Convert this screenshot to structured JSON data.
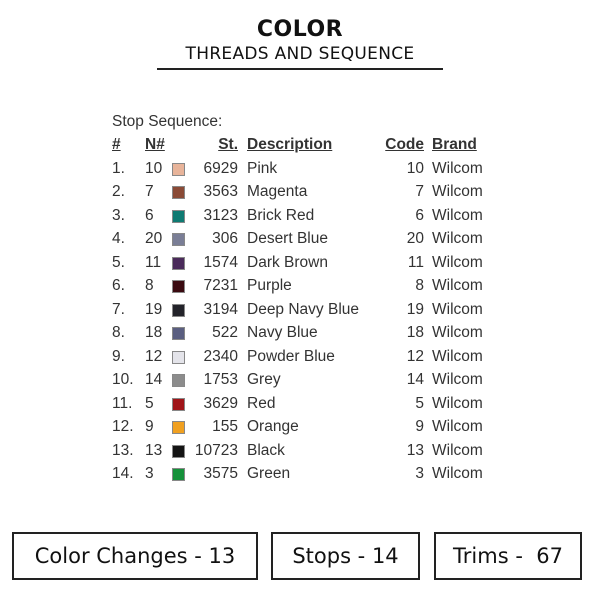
{
  "title": "COLOR",
  "subtitle": "THREADS AND SEQUENCE",
  "stop_sequence_label": "Stop Sequence:",
  "headers": {
    "num": "#",
    "n": "N#",
    "st": "St.",
    "description": "Description",
    "code": "Code",
    "brand": "Brand"
  },
  "rows": [
    {
      "num": "1.",
      "n": "10",
      "color": "#e8b49a",
      "st": "6929",
      "description": "Pink",
      "code": "10",
      "brand": "Wilcom"
    },
    {
      "num": "2.",
      "n": "7",
      "color": "#8a4a36",
      "st": "3563",
      "description": "Magenta",
      "code": "7",
      "brand": "Wilcom"
    },
    {
      "num": "3.",
      "n": "6",
      "color": "#0e7a72",
      "st": "3123",
      "description": "Brick Red",
      "code": "6",
      "brand": "Wilcom"
    },
    {
      "num": "4.",
      "n": "20",
      "color": "#7a7e96",
      "st": "306",
      "description": "Desert Blue",
      "code": "20",
      "brand": "Wilcom"
    },
    {
      "num": "5.",
      "n": "11",
      "color": "#4a2a5a",
      "st": "1574",
      "description": "Dark Brown",
      "code": "11",
      "brand": "Wilcom"
    },
    {
      "num": "6.",
      "n": "8",
      "color": "#3a0a10",
      "st": "7231",
      "description": "Purple",
      "code": "8",
      "brand": "Wilcom"
    },
    {
      "num": "7.",
      "n": "19",
      "color": "#23232a",
      "st": "3194",
      "description": "Deep Navy Blue",
      "code": "19",
      "brand": "Wilcom"
    },
    {
      "num": "8.",
      "n": "18",
      "color": "#5a5e80",
      "st": "522",
      "description": "Navy Blue",
      "code": "18",
      "brand": "Wilcom"
    },
    {
      "num": "9.",
      "n": "12",
      "color": "#e4e4ea",
      "st": "2340",
      "description": "Powder Blue",
      "code": "12",
      "brand": "Wilcom"
    },
    {
      "num": "10.",
      "n": "14",
      "color": "#8c8c8c",
      "st": "1753",
      "description": "Grey",
      "code": "14",
      "brand": "Wilcom"
    },
    {
      "num": "11.",
      "n": "5",
      "color": "#a01418",
      "st": "3629",
      "description": "Red",
      "code": "5",
      "brand": "Wilcom"
    },
    {
      "num": "12.",
      "n": "9",
      "color": "#f0a020",
      "st": "155",
      "description": "Orange",
      "code": "9",
      "brand": "Wilcom"
    },
    {
      "num": "13.",
      "n": "13",
      "color": "#141414",
      "st": "10723",
      "description": "Black",
      "code": "13",
      "brand": "Wilcom"
    },
    {
      "num": "14.",
      "n": "3",
      "color": "#15913a",
      "st": "3575",
      "description": "Green",
      "code": "3",
      "brand": "Wilcom"
    }
  ],
  "summary": {
    "color_changes": "Color Changes - 13",
    "stops": "Stops - 14",
    "trims": "Trims -  67"
  }
}
